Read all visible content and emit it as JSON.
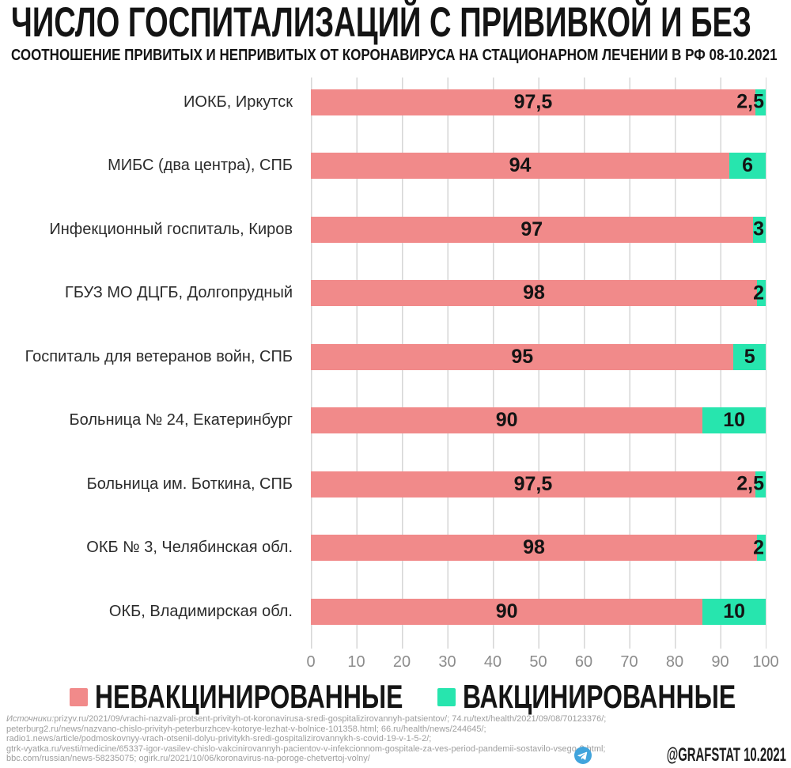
{
  "theme": {
    "title_color": "#141414",
    "grid_color": "#d6d6d6",
    "axis_color": "#8c8c8c",
    "footer_color": "#9e9e9e",
    "unvaccinated_color": "#F18A8A",
    "vaccinated_color": "#27E5AE",
    "telegram_blue": "#41A4DC"
  },
  "header": {
    "title": "ЧИСЛО ГОСПИТАЛИЗАЦИЙ С ПРИВИВКОЙ И БЕЗ",
    "subtitle": "СООТНОШЕНИЕ ПРИВИТЫХ И НЕПРИВИТЫХ ОТ КОРОНАВИРУСА НА СТАЦИОНАРНОМ ЛЕЧЕНИИ В РФ 08-10.2021"
  },
  "chart_data": {
    "type": "bar",
    "orientation": "horizontal",
    "stacked": true,
    "grid": true,
    "legend_position": "bottom",
    "xlim": [
      0,
      100
    ],
    "x_ticks": [
      "0",
      "10",
      "20",
      "30",
      "40",
      "50",
      "60",
      "70",
      "80",
      "90",
      "100"
    ],
    "categories": [
      "ИОКБ, Иркутск",
      "МИБС (два центра), СПБ",
      "Инфекционный госпиталь, Киров",
      "ГБУЗ МО ДЦГБ, Долгопрудный",
      "Госпиталь для ветеранов войн, СПБ",
      "Больница № 24, Екатеринбург",
      "Больница им. Боткина, СПБ",
      "ОКБ № 3, Челябинская обл.",
      "ОКБ, Владимирская обл."
    ],
    "series": [
      {
        "name": "НЕВАКЦИНИРОВАННЫЕ",
        "color": "#F18A8A",
        "values": [
          97.5,
          94,
          97,
          98,
          95,
          90,
          97.5,
          98,
          90
        ],
        "labels": [
          "97,5",
          "94",
          "97",
          "98",
          "95",
          "90",
          "97,5",
          "98",
          "90"
        ]
      },
      {
        "name": "ВАКЦИНИРОВАННЫЕ",
        "color": "#27E5AE",
        "values": [
          2.5,
          6,
          3,
          2,
          5,
          10,
          2.5,
          2,
          10
        ],
        "labels": [
          "2,5",
          "6",
          "3",
          "2",
          "5",
          "10",
          "2,5",
          "2",
          "10"
        ]
      }
    ]
  },
  "footer": {
    "sources_label": "Источники:",
    "sources_lines": [
      "prizyv.ru/2021/09/vrachi-nazvali-protsent-privityh-ot-koronavirusa-sredi-gospitalizirovannyh-patsientov/; 74.ru/text/health/2021/09/08/70123376/;",
      "peterburg2.ru/news/nazvano-chislo-privityh-peterburzhcev-kotorye-lezhat-v-bolnice-101358.html; 66.ru/health/news/244645/;",
      "radio1.news/article/podmoskovnyy-vrach-otsenil-dolyu-privitykh-sredi-gospitalizirovannykh-s-covid-19-v-1-5-2/;",
      "gtrk-vyatka.ru/vesti/medicine/65337-igor-vasilev-chislo-vakcinirovannyh-pacientov-v-infekcionnom-gospitale-za-ves-period-pandemii-sostavilo-vsego-3.html;",
      "bbc.com/russian/news-58235075; ogirk.ru/2021/10/06/koronavirus-na-poroge-chetvertoj-volny/"
    ],
    "credit": "@GRAFSTAT 10.2021",
    "credit_icon": "telegram-icon"
  }
}
